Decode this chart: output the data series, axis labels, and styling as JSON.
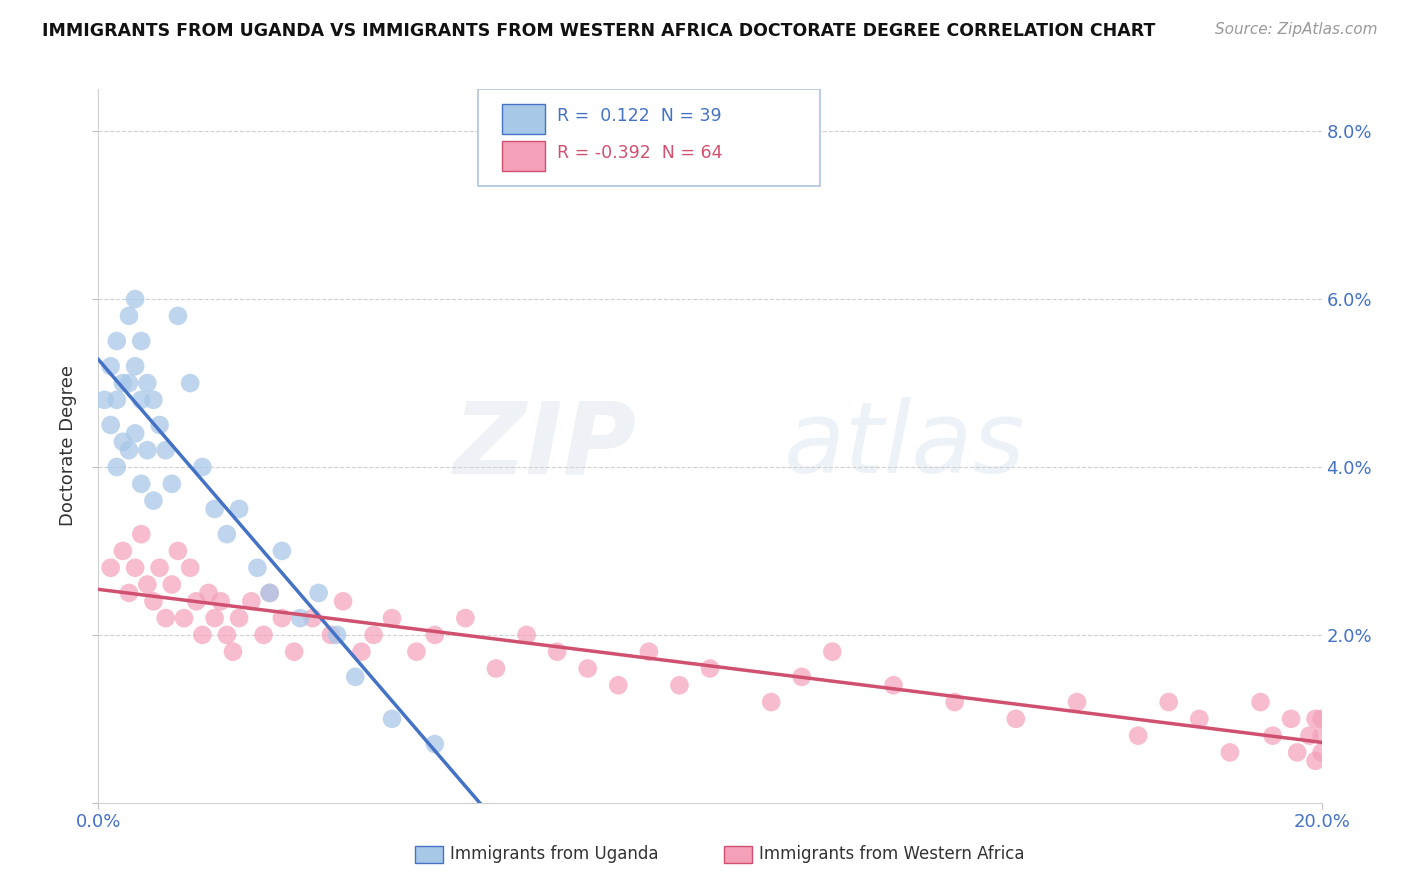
{
  "title": "IMMIGRANTS FROM UGANDA VS IMMIGRANTS FROM WESTERN AFRICA DOCTORATE DEGREE CORRELATION CHART",
  "source": "Source: ZipAtlas.com",
  "ylabel": "Doctorate Degree",
  "color_uganda": "#a8c8e8",
  "color_western": "#f4a0b8",
  "line_color_uganda": "#4472c4",
  "line_color_western": "#d05070",
  "watermark_zip": "ZIP",
  "watermark_atlas": "atlas",
  "xlim": [
    0.0,
    0.2
  ],
  "ylim": [
    0.0,
    0.085
  ],
  "legend_box_edge": "#b0c4de",
  "grid_color": "#d0d0d0",
  "tick_color": "#4472c4",
  "uganda_x": [
    0.001,
    0.002,
    0.002,
    0.003,
    0.003,
    0.003,
    0.004,
    0.004,
    0.005,
    0.005,
    0.005,
    0.006,
    0.006,
    0.006,
    0.007,
    0.007,
    0.007,
    0.008,
    0.008,
    0.009,
    0.009,
    0.01,
    0.011,
    0.012,
    0.013,
    0.015,
    0.017,
    0.019,
    0.021,
    0.023,
    0.026,
    0.028,
    0.03,
    0.033,
    0.036,
    0.039,
    0.042,
    0.048,
    0.055
  ],
  "uganda_y": [
    0.048,
    0.052,
    0.045,
    0.055,
    0.048,
    0.04,
    0.05,
    0.043,
    0.058,
    0.05,
    0.042,
    0.06,
    0.052,
    0.044,
    0.055,
    0.048,
    0.038,
    0.05,
    0.042,
    0.048,
    0.036,
    0.045,
    0.042,
    0.038,
    0.058,
    0.05,
    0.04,
    0.035,
    0.032,
    0.035,
    0.028,
    0.025,
    0.03,
    0.022,
    0.025,
    0.02,
    0.015,
    0.01,
    0.007
  ],
  "western_x": [
    0.002,
    0.004,
    0.005,
    0.006,
    0.007,
    0.008,
    0.009,
    0.01,
    0.011,
    0.012,
    0.013,
    0.014,
    0.015,
    0.016,
    0.017,
    0.018,
    0.019,
    0.02,
    0.021,
    0.022,
    0.023,
    0.025,
    0.027,
    0.028,
    0.03,
    0.032,
    0.035,
    0.038,
    0.04,
    0.043,
    0.045,
    0.048,
    0.052,
    0.055,
    0.06,
    0.065,
    0.07,
    0.075,
    0.08,
    0.085,
    0.09,
    0.095,
    0.1,
    0.11,
    0.115,
    0.12,
    0.13,
    0.14,
    0.15,
    0.16,
    0.17,
    0.175,
    0.18,
    0.185,
    0.19,
    0.192,
    0.195,
    0.196,
    0.198,
    0.199,
    0.199,
    0.2,
    0.2,
    0.2
  ],
  "western_y": [
    0.028,
    0.03,
    0.025,
    0.028,
    0.032,
    0.026,
    0.024,
    0.028,
    0.022,
    0.026,
    0.03,
    0.022,
    0.028,
    0.024,
    0.02,
    0.025,
    0.022,
    0.024,
    0.02,
    0.018,
    0.022,
    0.024,
    0.02,
    0.025,
    0.022,
    0.018,
    0.022,
    0.02,
    0.024,
    0.018,
    0.02,
    0.022,
    0.018,
    0.02,
    0.022,
    0.016,
    0.02,
    0.018,
    0.016,
    0.014,
    0.018,
    0.014,
    0.016,
    0.012,
    0.015,
    0.018,
    0.014,
    0.012,
    0.01,
    0.012,
    0.008,
    0.012,
    0.01,
    0.006,
    0.012,
    0.008,
    0.01,
    0.006,
    0.008,
    0.01,
    0.005,
    0.008,
    0.01,
    0.006
  ]
}
